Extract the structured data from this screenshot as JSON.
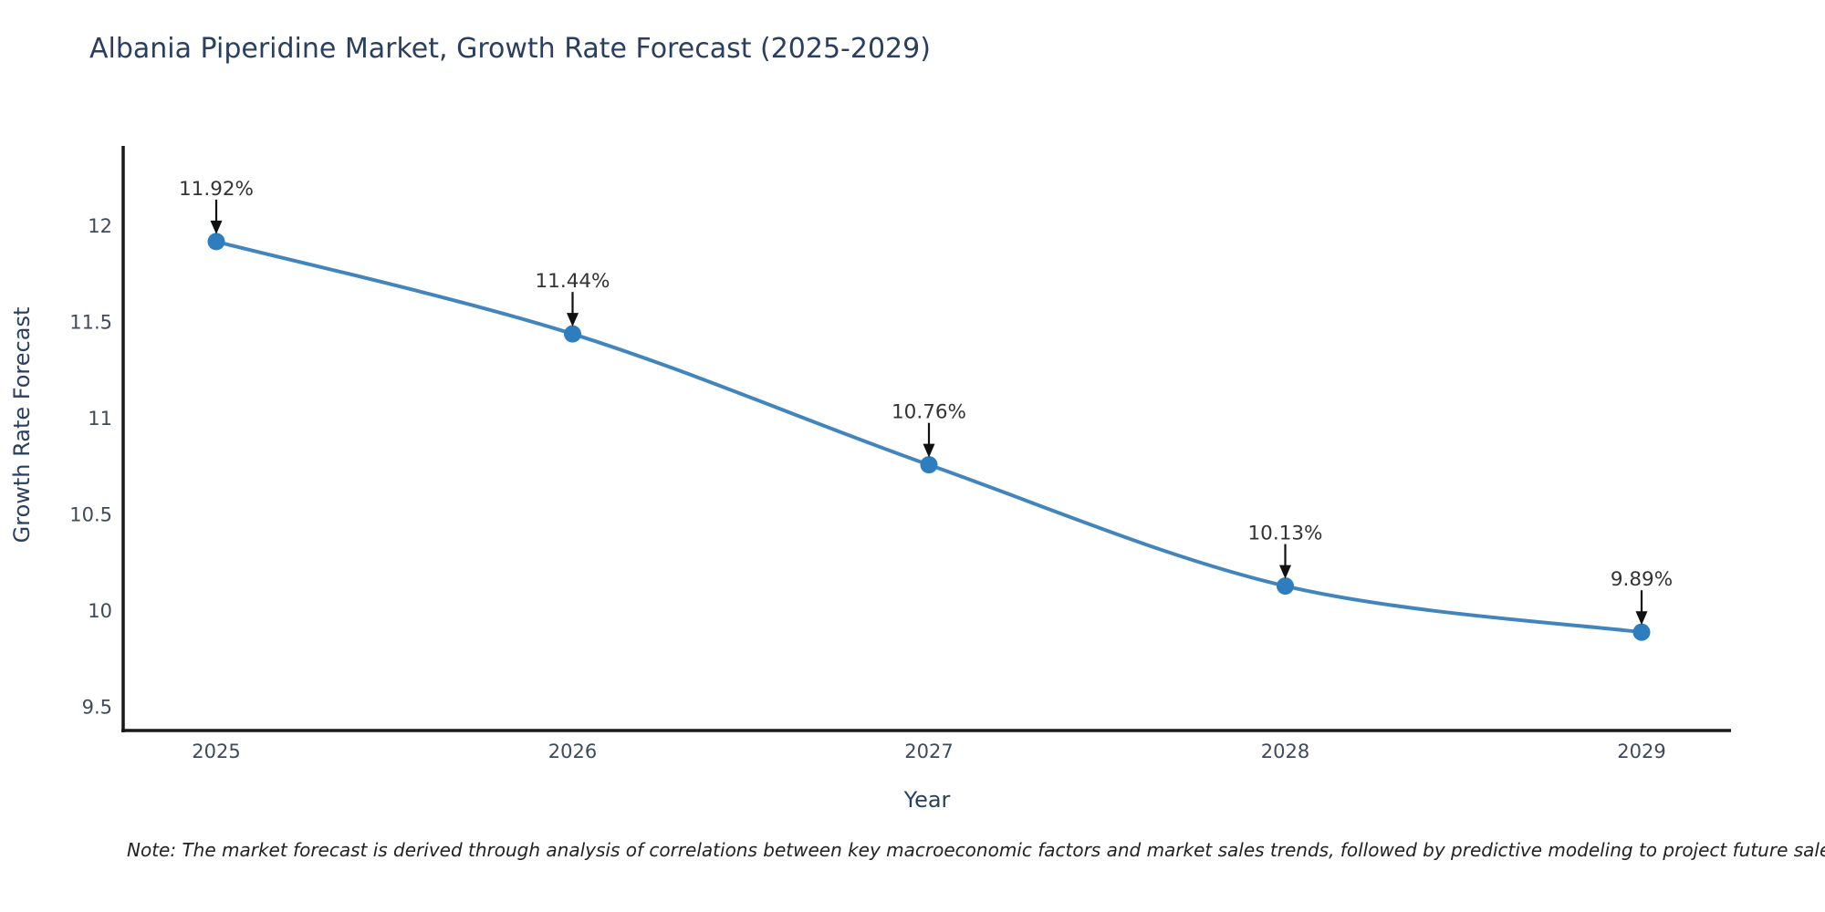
{
  "title": "Albania Piperidine Market, Growth Rate Forecast (2025-2029)",
  "note": "Note: The market forecast is derived through analysis of correlations between key macroeconomic factors and market sales trends, followed by predictive modeling to project future sales.",
  "chart_data": {
    "type": "line",
    "title": "Albania Piperidine Market, Growth Rate Forecast (2025-2029)",
    "xlabel": "Year",
    "ylabel": "Growth Rate Forecast",
    "categories": [
      "2025",
      "2026",
      "2027",
      "2028",
      "2029"
    ],
    "series": [
      {
        "name": "Growth Rate Forecast",
        "values": [
          11.92,
          11.44,
          10.76,
          10.13,
          9.89
        ],
        "point_labels": [
          "11.92%",
          "11.44%",
          "10.76%",
          "10.13%",
          "9.89%"
        ]
      }
    ],
    "y_ticks": [
      "12",
      "11.5",
      "11",
      "10.5",
      "10",
      "9.5"
    ],
    "y_tick_values": [
      12,
      11.5,
      11,
      10.5,
      10,
      9.5
    ],
    "ylim": [
      9.37,
      12.42
    ],
    "grid": false,
    "legend_position": "none",
    "annotation_style": "value label above point with downward arrow",
    "colors": {
      "line": "#4285bd",
      "marker": "#2e7dbe",
      "axis": "#1a1a1a",
      "title_text": "#2a3f5f",
      "axis_title_text": "#2a3f5f",
      "tick_text": "#3f4a5c",
      "annotation_text": "#333333",
      "arrow": "#111111",
      "background": "#ffffff"
    }
  }
}
